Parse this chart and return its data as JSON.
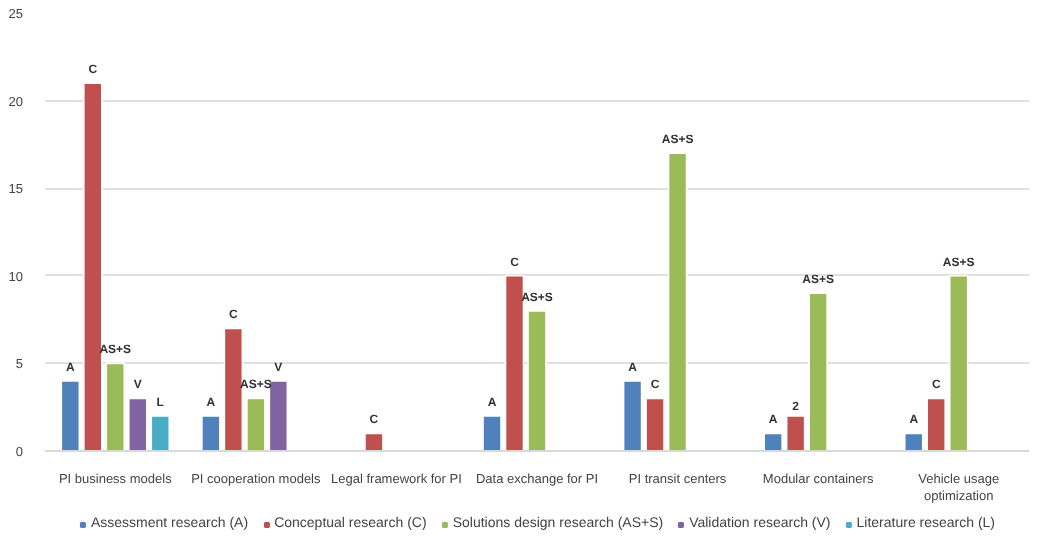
{
  "chart_data": {
    "type": "bar",
    "categories": [
      "PI business models",
      "PI cooperation models",
      "Legal framework for PI",
      "Data exchange for PI",
      "PI transit centers",
      "Modular containers",
      "Vehicle usage optimization"
    ],
    "series": [
      {
        "name": "Assessment research (A)",
        "color": "#4f81bd",
        "values": [
          4,
          2,
          null,
          2,
          4,
          1,
          1
        ],
        "value_labels": [
          "A",
          "A",
          null,
          "A",
          "A",
          "A",
          "A"
        ]
      },
      {
        "name": "Conceptual research (C)",
        "color": "#c0504d",
        "values": [
          21,
          7,
          1,
          10,
          3,
          2,
          3
        ],
        "value_labels": [
          "C",
          "C",
          "C",
          "C",
          "C",
          "2",
          "C"
        ]
      },
      {
        "name": "Solutions design research (AS+S)",
        "color": "#9bbb59",
        "values": [
          5,
          3,
          null,
          8,
          17,
          9,
          10
        ],
        "value_labels": [
          "AS+S",
          "AS+S",
          null,
          "AS+S",
          "AS+S",
          "AS+S",
          "AS+S"
        ]
      },
      {
        "name": "Validation research (V)",
        "color": "#8064a2",
        "values": [
          3,
          4,
          null,
          null,
          null,
          null,
          null
        ],
        "value_labels": [
          "V",
          "V",
          null,
          null,
          null,
          null,
          null
        ]
      },
      {
        "name": "Literature research (L)",
        "color": "#4bacc6",
        "values": [
          2,
          null,
          null,
          null,
          null,
          null,
          null
        ],
        "value_labels": [
          "L",
          null,
          null,
          null,
          null,
          null,
          null
        ]
      }
    ],
    "ylim": [
      0,
      25
    ],
    "yticks": [
      0,
      5,
      10,
      15,
      20,
      25
    ],
    "grid": "y",
    "legend": "bottom"
  }
}
